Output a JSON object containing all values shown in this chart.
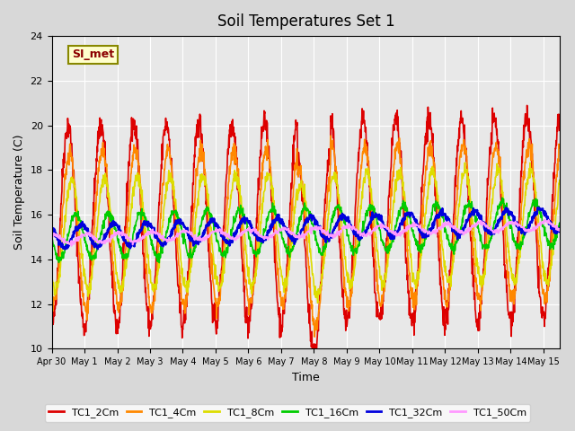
{
  "title": "Soil Temperatures Set 1",
  "xlabel": "Time",
  "ylabel": "Soil Temperature (C)",
  "ylim": [
    10,
    24
  ],
  "yticks": [
    10,
    12,
    14,
    16,
    18,
    20,
    22,
    24
  ],
  "background_color": "#e8e8e8",
  "plot_bg_color": "#e8e8e8",
  "colors": {
    "TC1_2Cm": "#dd0000",
    "TC1_4Cm": "#ff8800",
    "TC1_8Cm": "#dddd00",
    "TC1_16Cm": "#00cc00",
    "TC1_32Cm": "#0000dd",
    "TC1_50Cm": "#ff99ff"
  },
  "legend_label": "SI_met",
  "legend_bg": "#ffffcc",
  "legend_border": "#888800",
  "start_day": 0,
  "num_days": 15.5,
  "hours_per_day": 24,
  "dt": 0.25
}
